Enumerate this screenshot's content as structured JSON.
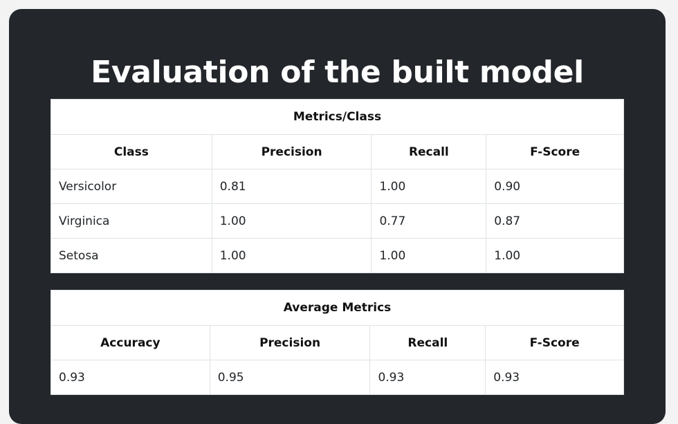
{
  "page": {
    "title": "Evaluation of the built model"
  },
  "class_table": {
    "caption": "Metrics/Class",
    "headers": [
      "Class",
      "Precision",
      "Recall",
      "F-Score"
    ],
    "rows": [
      [
        "Versicolor",
        "0.81",
        "1.00",
        "0.90"
      ],
      [
        "Virginica",
        "1.00",
        "0.77",
        "0.87"
      ],
      [
        "Setosa",
        "1.00",
        "1.00",
        "1.00"
      ]
    ]
  },
  "average_table": {
    "caption": "Average Metrics",
    "headers": [
      "Accuracy",
      "Precision",
      "Recall",
      "F-Score"
    ],
    "rows": [
      [
        "0.93",
        "0.95",
        "0.93",
        "0.93"
      ]
    ]
  },
  "colors": {
    "page_background": "#f3f3f4",
    "card_background": "#23262b",
    "title_text": "#ffffff",
    "table_background": "#ffffff",
    "table_border": "#dee2e6"
  }
}
